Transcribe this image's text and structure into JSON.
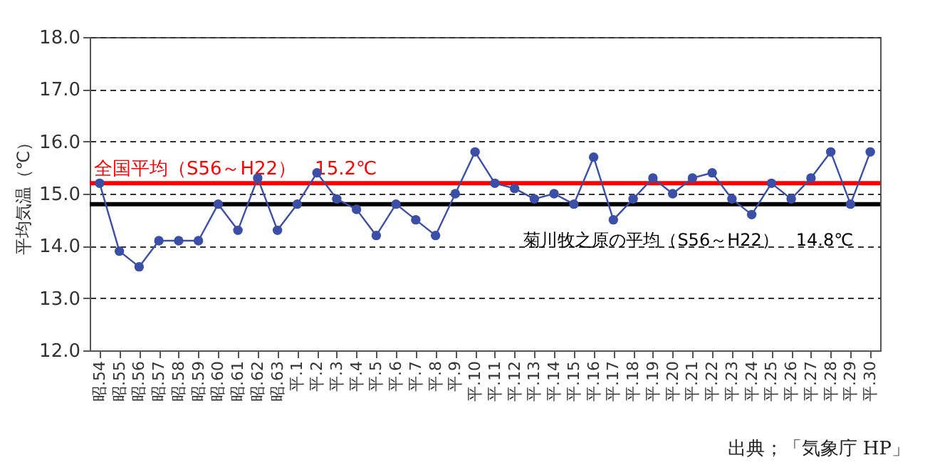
{
  "chart_data": {
    "type": "line",
    "ylabel": "平均気温（℃）",
    "categories": [
      "昭.54",
      "昭.55",
      "昭.56",
      "昭.57",
      "昭.58",
      "昭.59",
      "昭.60",
      "昭.61",
      "昭.62",
      "昭.63",
      "平.1",
      "平.2",
      "平.3",
      "平.4",
      "平.5",
      "平.6",
      "平.7",
      "平.8",
      "平.9",
      "平.10",
      "平.11",
      "平.12",
      "平.13",
      "平.14",
      "平.15",
      "平.16",
      "平.17",
      "平.18",
      "平.19",
      "平.20",
      "平.21",
      "平.22",
      "平.23",
      "平.24",
      "平.25",
      "平.26",
      "平.27",
      "平.28",
      "平.29",
      "平.30"
    ],
    "series": [
      {
        "color": "#3b4fa6",
        "values": [
          15.2,
          13.9,
          13.6,
          14.1,
          14.1,
          14.1,
          14.8,
          14.3,
          15.3,
          14.3,
          14.8,
          15.4,
          14.9,
          14.7,
          14.2,
          14.8,
          14.5,
          14.2,
          15.0,
          15.8,
          15.2,
          15.1,
          14.9,
          15.0,
          14.8,
          15.7,
          14.5,
          14.9,
          15.3,
          15.0,
          15.3,
          15.4,
          14.9,
          14.6,
          15.2,
          14.9,
          15.3,
          15.8,
          14.8,
          15.8
        ]
      }
    ],
    "ylim": [
      12.0,
      18.0
    ],
    "yticks": [
      {
        "value": 12,
        "label": "12.0"
      },
      {
        "value": 13,
        "label": "13.0"
      },
      {
        "value": 14,
        "label": "14.0"
      },
      {
        "value": 15,
        "label": "15.0"
      },
      {
        "value": 16,
        "label": "16.0"
      },
      {
        "value": 17,
        "label": "17.0"
      },
      {
        "value": 18,
        "label": "18.0"
      }
    ],
    "ref_lines": [
      {
        "axis": "y",
        "value": 15.2,
        "label": "全国平均（S56～H22）　15.2℃",
        "color": "#ff0000"
      },
      {
        "axis": "y",
        "value": 14.8,
        "label": "菊川牧之原の平均（S56～H22）　14.8℃",
        "color": "#000000"
      }
    ],
    "annotations": [
      "出典；「気象庁 HP」"
    ],
    "grid": "y",
    "marker": "circle",
    "line_style": "solid"
  }
}
